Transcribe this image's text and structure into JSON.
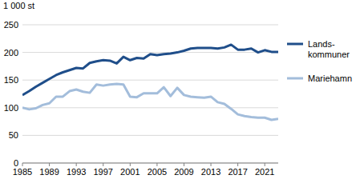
{
  "chart_data": {
    "type": "line",
    "title": "1 000 st",
    "x": [
      1985,
      1986,
      1987,
      1988,
      1989,
      1990,
      1991,
      1992,
      1993,
      1994,
      1995,
      1996,
      1997,
      1998,
      1999,
      2000,
      2001,
      2002,
      2003,
      2004,
      2005,
      2006,
      2007,
      2008,
      2009,
      2010,
      2011,
      2012,
      2013,
      2014,
      2015,
      2016,
      2017,
      2018,
      2019,
      2020,
      2021,
      2022,
      2023
    ],
    "series": [
      {
        "name": "Lands-kommuner",
        "color": "#1f4e8a",
        "values": [
          123,
          130,
          138,
          145,
          152,
          159,
          164,
          168,
          172,
          171,
          181,
          184,
          186,
          185,
          180,
          192,
          186,
          190,
          189,
          197,
          195,
          197,
          198,
          200,
          203,
          207,
          208,
          208,
          208,
          207,
          209,
          214,
          205,
          205,
          207,
          200,
          204,
          201,
          201
        ]
      },
      {
        "name": "Mariehamn",
        "color": "#a3bddb",
        "values": [
          100,
          97,
          99,
          105,
          108,
          120,
          120,
          130,
          133,
          129,
          127,
          142,
          140,
          142,
          143,
          142,
          120,
          119,
          126,
          126,
          126,
          137,
          121,
          136,
          123,
          120,
          119,
          118,
          120,
          110,
          107,
          98,
          88,
          85,
          83,
          82,
          82,
          78,
          80
        ]
      }
    ],
    "xlim": [
      1985,
      2023
    ],
    "xticks": [
      1985,
      1989,
      1993,
      1997,
      2001,
      2005,
      2009,
      2013,
      2017,
      2021
    ],
    "ylim": [
      0,
      250
    ],
    "yticks": [
      0,
      50,
      100,
      150,
      200,
      250
    ],
    "grid": true,
    "legend": "right"
  }
}
